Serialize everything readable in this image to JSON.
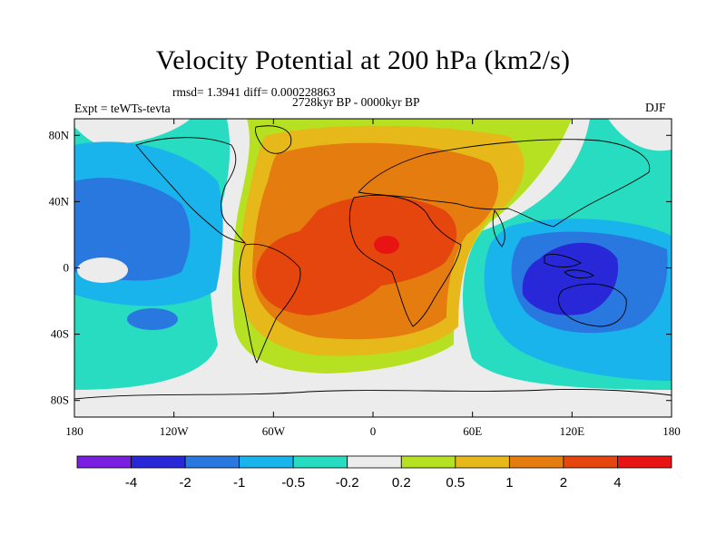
{
  "map": {
    "title": "Velocity Potential at 200 hPa (km2/s)",
    "stats": "rmsd= 1.3941 diff= 0.000228863",
    "experiment": "Expt = teWTs-tevta",
    "period": "2728kyr BP - 0000kyr BP",
    "season": "DJF",
    "projection": "cylindrical equidistant",
    "lon_range": [
      -180,
      180
    ],
    "lat_range": [
      -90,
      90
    ],
    "lat_ticks": [
      "80N",
      "40N",
      "0",
      "40S",
      "80S"
    ],
    "lat_values": [
      80,
      40,
      0,
      -40,
      -80
    ],
    "lon_ticks": [
      "180",
      "120W",
      "60W",
      "0",
      "60E",
      "120E",
      "180"
    ],
    "lon_values": [
      -180,
      -120,
      -60,
      0,
      60,
      120,
      180
    ]
  },
  "colorbar": {
    "labels": [
      "-4",
      "-2",
      "-1",
      "-0.5",
      "-0.2",
      "0.2",
      "0.5",
      "1",
      "2",
      "4"
    ],
    "colors": [
      "#7a1ee0",
      "#2828d8",
      "#2878e0",
      "#19b4ec",
      "#27dcc0",
      "#ececec",
      "#b6e022",
      "#e6b81a",
      "#e47c10",
      "#e4460e",
      "#e81414"
    ]
  },
  "regions": [
    {
      "name": "positive-center-africa",
      "sign": "+",
      "peak_level": "4"
    },
    {
      "name": "negative-center-maritime-continent",
      "sign": "-",
      "peak_level": "-2"
    }
  ]
}
